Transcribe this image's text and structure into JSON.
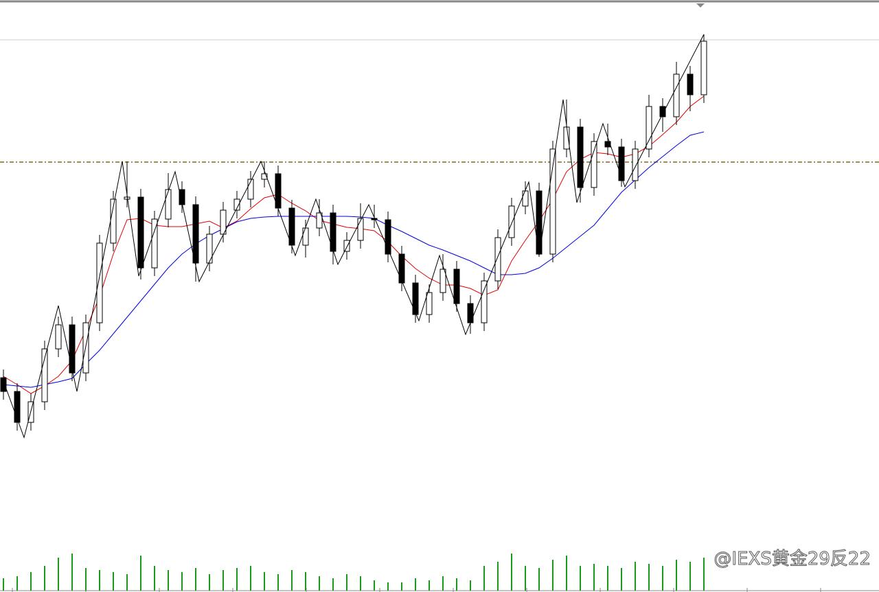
{
  "chart_data": {
    "type": "candlestick",
    "xlim": [
      -0.25,
      63.75
    ],
    "ylim": [
      72,
      804
    ],
    "open": [
      312,
      292,
      247,
      277,
      354,
      389,
      319,
      392,
      508,
      572,
      575,
      472,
      543,
      586,
      564,
      479,
      521,
      556,
      572,
      601,
      609,
      559,
      505,
      530,
      552,
      496,
      512,
      544,
      542,
      492,
      450,
      404,
      436,
      470,
      420,
      392,
      453,
      516,
      562,
      584,
      492,
      645,
      677,
      589,
      656,
      648,
      599,
      645,
      707,
      692,
      754,
      724
    ],
    "high": [
      324,
      304,
      289,
      366,
      401,
      401,
      404,
      520,
      584,
      627,
      587,
      555,
      610,
      598,
      576,
      533,
      568,
      584,
      613,
      627,
      621,
      571,
      542,
      572,
      564,
      524,
      566,
      564,
      554,
      504,
      462,
      448,
      492,
      482,
      432,
      465,
      528,
      574,
      598,
      596,
      657,
      717,
      689,
      668,
      682,
      660,
      657,
      724,
      719,
      772,
      766,
      812
    ],
    "low": [
      280,
      235,
      235,
      265,
      342,
      307,
      307,
      380,
      496,
      560,
      455,
      460,
      531,
      552,
      452,
      467,
      509,
      544,
      560,
      589,
      547,
      493,
      487,
      518,
      477,
      484,
      500,
      530,
      480,
      438,
      392,
      392,
      424,
      408,
      376,
      380,
      441,
      504,
      550,
      488,
      480,
      633,
      567,
      577,
      636,
      590,
      587,
      633,
      670,
      680,
      700,
      712
    ],
    "close": [
      292,
      247,
      277,
      354,
      389,
      319,
      392,
      508,
      572,
      575,
      472,
      543,
      586,
      564,
      479,
      521,
      556,
      572,
      601,
      609,
      559,
      505,
      530,
      552,
      496,
      512,
      544,
      542,
      492,
      450,
      404,
      436,
      470,
      420,
      392,
      453,
      516,
      562,
      584,
      492,
      645,
      677,
      589,
      656,
      648,
      599,
      645,
      707,
      692,
      754,
      724,
      802
    ],
    "series": [
      {
        "color": "#e00000",
        "values": [
          314,
          302,
          289,
          300,
          314,
          337,
          382,
          430,
          492,
          542,
          544,
          534,
          532,
          532,
          536,
          540,
          530,
          540,
          558,
          574,
          579,
          566,
          555,
          541,
          536,
          531,
          529,
          526,
          510,
          489,
          471,
          457,
          447,
          447,
          442,
          432,
          440,
          482,
          512,
          540,
          572,
          612,
          630,
          640,
          638,
          633,
          638,
          649,
          666,
          684,
          707,
          722
        ]
      },
      {
        "color": "#0000e0",
        "values": [
          302,
          300,
          298,
          302,
          306,
          311,
          332,
          352,
          376,
          400,
          424,
          448,
          472,
          492,
          507,
          519,
          529,
          539,
          544,
          546,
          547,
          547,
          547,
          547,
          547,
          547,
          546,
          544,
          534,
          525,
          515,
          505,
          498,
          490,
          482,
          472,
          462,
          462,
          464,
          472,
          486,
          502,
          518,
          534,
          558,
          582,
          600,
          618,
          634,
          650,
          665,
          670
        ]
      }
    ],
    "zigzag": {
      "color": "#000000",
      "x": [
        0,
        1.5,
        4,
        5.35,
        8.65,
        9.85,
        12.5,
        14.25,
        18.75,
        21.25,
        22.75,
        24.35,
        26.6,
        30.25,
        31.75,
        33.65,
        38.25,
        39,
        40.75,
        41.75,
        43.65,
        45.25,
        51
      ],
      "values": [
        307,
        225,
        417,
        292,
        627,
        460,
        612,
        452,
        627,
        490,
        572,
        477,
        564,
        395,
        490,
        375,
        597,
        490,
        717,
        567,
        682,
        590,
        812
      ]
    },
    "level": {
      "value": 626,
      "color": "#8b6914"
    },
    "volume": {
      "color": "#1a9a1a",
      "vlim": [
        0,
        100
      ],
      "values": [
        30,
        35,
        45,
        60,
        80,
        90,
        55,
        50,
        45,
        40,
        85,
        60,
        50,
        45,
        55,
        40,
        50,
        55,
        60,
        45,
        40,
        50,
        45,
        35,
        30,
        40,
        35,
        25,
        20,
        20,
        30,
        25,
        35,
        30,
        25,
        60,
        70,
        90,
        60,
        55,
        75,
        85,
        60,
        65,
        60,
        55,
        70,
        65,
        60,
        75,
        70,
        80
      ]
    },
    "watermark": "@IEXS黄金29反22"
  }
}
